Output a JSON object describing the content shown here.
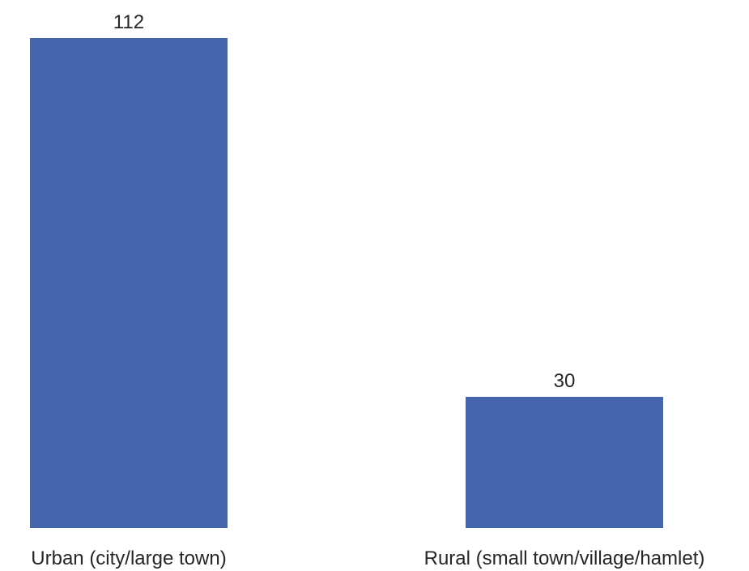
{
  "chart_data": {
    "type": "bar",
    "categories": [
      "Urban (city/large town)",
      "Rural (small town/village/hamlet)"
    ],
    "values": [
      112,
      30
    ],
    "data_labels": [
      "112",
      "30"
    ],
    "title": "",
    "xlabel": "",
    "ylabel": "",
    "ylim": [
      0,
      112
    ],
    "grid": false,
    "legend": "none",
    "colors": {
      "bar": "#4565AD",
      "text": "#262626",
      "background": "#FFFFFF"
    }
  }
}
